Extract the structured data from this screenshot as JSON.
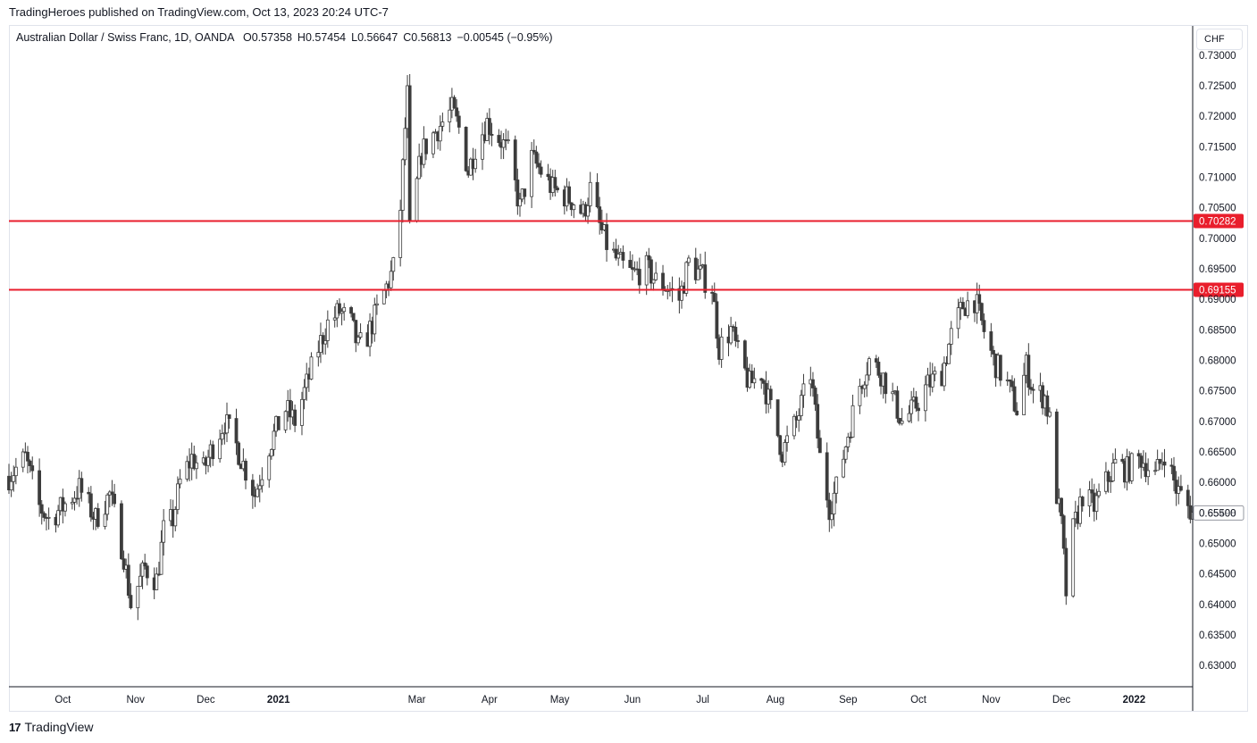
{
  "header": {
    "published": "TradingHeroes published on TradingView.com, Oct 13, 2023 20:24 UTC-7"
  },
  "legend": {
    "symbol": "Australian Dollar / Swiss Franc, 1D, OANDA",
    "open": "O0.57358",
    "high": "H0.57454",
    "low": "L0.56647",
    "close": "C0.56813",
    "change": "−0.00545 (−0.95%)"
  },
  "currency_button": "CHF",
  "footer": {
    "brand": "TradingView",
    "logo_glyph": "17"
  },
  "colors": {
    "candle": "#3c3c3c",
    "level_line": "#e91e2c",
    "axis_text": "#131722",
    "border": "#e0e3eb",
    "last_price_box": "#9598a1"
  },
  "chart_data": {
    "type": "candlestick",
    "title": "",
    "xlabel": "",
    "ylabel": "",
    "ylim": [
      0.6265,
      0.7348
    ],
    "y_ticks": [
      "0.73000",
      "0.72500",
      "0.72000",
      "0.71500",
      "0.71000",
      "0.70500",
      "0.70000",
      "0.69500",
      "0.69000",
      "0.68500",
      "0.68000",
      "0.67500",
      "0.67000",
      "0.66500",
      "0.66000",
      "0.65500",
      "0.65000",
      "0.64500",
      "0.64000",
      "0.63500",
      "0.63000"
    ],
    "x_ticks": [
      {
        "label": "Oct",
        "date": "2020-10-01",
        "bold": false
      },
      {
        "label": "Nov",
        "date": "2020-11-01",
        "bold": false
      },
      {
        "label": "Dec",
        "date": "2020-12-01",
        "bold": false
      },
      {
        "label": "2021",
        "date": "2021-01-01",
        "bold": true
      },
      {
        "label": "Mar",
        "date": "2021-03-01",
        "bold": false
      },
      {
        "label": "Apr",
        "date": "2021-04-01",
        "bold": false
      },
      {
        "label": "May",
        "date": "2021-05-01",
        "bold": false
      },
      {
        "label": "Jun",
        "date": "2021-06-01",
        "bold": false
      },
      {
        "label": "Jul",
        "date": "2021-07-01",
        "bold": false
      },
      {
        "label": "Aug",
        "date": "2021-08-01",
        "bold": false
      },
      {
        "label": "Sep",
        "date": "2021-09-01",
        "bold": false
      },
      {
        "label": "Oct",
        "date": "2021-10-01",
        "bold": false
      },
      {
        "label": "Nov",
        "date": "2021-11-01",
        "bold": false
      },
      {
        "label": "Dec",
        "date": "2021-12-01",
        "bold": false
      },
      {
        "label": "2022",
        "date": "2022-01-01",
        "bold": true
      }
    ],
    "x_range": [
      "2020-09-08",
      "2022-01-26"
    ],
    "levels": [
      {
        "value": 0.70282,
        "label": "0.70282"
      },
      {
        "value": 0.69155,
        "label": "0.69155"
      }
    ],
    "last_price": {
      "value": 0.65498,
      "label": "0.65498"
    },
    "close_path": [
      [
        "2020-09-08",
        0.661
      ],
      [
        "2020-09-15",
        0.664
      ],
      [
        "2020-09-21",
        0.656
      ],
      [
        "2020-09-25",
        0.654
      ],
      [
        "2020-10-01",
        0.656
      ],
      [
        "2020-10-08",
        0.659
      ],
      [
        "2020-10-15",
        0.654
      ],
      [
        "2020-10-21",
        0.658
      ],
      [
        "2020-10-27",
        0.648
      ],
      [
        "2020-10-30",
        0.64
      ],
      [
        "2020-11-05",
        0.646
      ],
      [
        "2020-11-10",
        0.644
      ],
      [
        "2020-11-13",
        0.652
      ],
      [
        "2020-11-17",
        0.654
      ],
      [
        "2020-11-20",
        0.66
      ],
      [
        "2020-11-25",
        0.664
      ],
      [
        "2020-11-30",
        0.662
      ],
      [
        "2020-12-04",
        0.666
      ],
      [
        "2020-12-09",
        0.67
      ],
      [
        "2020-12-14",
        0.666
      ],
      [
        "2020-12-18",
        0.662
      ],
      [
        "2020-12-22",
        0.658
      ],
      [
        "2020-12-28",
        0.666
      ],
      [
        "2021-01-04",
        0.672
      ],
      [
        "2021-01-08",
        0.67
      ],
      [
        "2021-01-13",
        0.676
      ],
      [
        "2021-01-18",
        0.682
      ],
      [
        "2021-01-22",
        0.686
      ],
      [
        "2021-01-27",
        0.688
      ],
      [
        "2021-02-01",
        0.686
      ],
      [
        "2021-02-04",
        0.682
      ],
      [
        "2021-02-08",
        0.684
      ],
      [
        "2021-02-12",
        0.688
      ],
      [
        "2021-02-16",
        0.692
      ],
      [
        "2021-02-19",
        0.695
      ],
      [
        "2021-02-22",
        0.705
      ],
      [
        "2021-02-24",
        0.718
      ],
      [
        "2021-02-25",
        0.725
      ],
      [
        "2021-02-26",
        0.701
      ],
      [
        "2021-03-03",
        0.714
      ],
      [
        "2021-03-08",
        0.717
      ],
      [
        "2021-03-12",
        0.719
      ],
      [
        "2021-03-16",
        0.721
      ],
      [
        "2021-03-19",
        0.718
      ],
      [
        "2021-03-23",
        0.711
      ],
      [
        "2021-03-26",
        0.715
      ],
      [
        "2021-03-31",
        0.719
      ],
      [
        "2021-04-06",
        0.716
      ],
      [
        "2021-04-09",
        0.714
      ],
      [
        "2021-04-14",
        0.705
      ],
      [
        "2021-04-19",
        0.713
      ],
      [
        "2021-04-23",
        0.711
      ],
      [
        "2021-04-28",
        0.708
      ],
      [
        "2021-05-03",
        0.707
      ],
      [
        "2021-05-07",
        0.706
      ],
      [
        "2021-05-11",
        0.704
      ],
      [
        "2021-05-14",
        0.708
      ],
      [
        "2021-05-18",
        0.702
      ],
      [
        "2021-05-21",
        0.699
      ],
      [
        "2021-05-26",
        0.696
      ],
      [
        "2021-06-01",
        0.694
      ],
      [
        "2021-06-07",
        0.695
      ],
      [
        "2021-06-11",
        0.693
      ],
      [
        "2021-06-16",
        0.692
      ],
      [
        "2021-06-21",
        0.69
      ],
      [
        "2021-06-25",
        0.696
      ],
      [
        "2021-06-30",
        0.694
      ],
      [
        "2021-07-05",
        0.692
      ],
      [
        "2021-07-08",
        0.682
      ],
      [
        "2021-07-13",
        0.685
      ],
      [
        "2021-07-16",
        0.681
      ],
      [
        "2021-07-21",
        0.676
      ],
      [
        "2021-07-26",
        0.678
      ],
      [
        "2021-07-30",
        0.672
      ],
      [
        "2021-08-04",
        0.665
      ],
      [
        "2021-08-10",
        0.67
      ],
      [
        "2021-08-16",
        0.678
      ],
      [
        "2021-08-20",
        0.664
      ],
      [
        "2021-08-24",
        0.656
      ],
      [
        "2021-08-27",
        0.659
      ],
      [
        "2021-09-01",
        0.668
      ],
      [
        "2021-09-06",
        0.676
      ],
      [
        "2021-09-10",
        0.68
      ],
      [
        "2021-09-15",
        0.678
      ],
      [
        "2021-09-20",
        0.674
      ],
      [
        "2021-09-24",
        0.67
      ],
      [
        "2021-09-29",
        0.672
      ],
      [
        "2021-10-05",
        0.676
      ],
      [
        "2021-10-11",
        0.678
      ],
      [
        "2021-10-15",
        0.684
      ],
      [
        "2021-10-20",
        0.689
      ],
      [
        "2021-10-25",
        0.69
      ],
      [
        "2021-10-28",
        0.686
      ],
      [
        "2021-11-02",
        0.68
      ],
      [
        "2021-11-08",
        0.676
      ],
      [
        "2021-11-12",
        0.672
      ],
      [
        "2021-11-16",
        0.679
      ],
      [
        "2021-11-19",
        0.675
      ],
      [
        "2021-11-24",
        0.674
      ],
      [
        "2021-11-26",
        0.67
      ],
      [
        "2021-11-29",
        0.658
      ],
      [
        "2021-12-01",
        0.653
      ],
      [
        "2021-12-03",
        0.642
      ],
      [
        "2021-12-06",
        0.652
      ],
      [
        "2021-12-10",
        0.658
      ],
      [
        "2021-12-15",
        0.656
      ],
      [
        "2021-12-20",
        0.66
      ],
      [
        "2021-12-24",
        0.663
      ],
      [
        "2021-12-29",
        0.662
      ],
      [
        "2022-01-04",
        0.664
      ],
      [
        "2022-01-10",
        0.661
      ],
      [
        "2022-01-14",
        0.665
      ],
      [
        "2022-01-19",
        0.659
      ],
      [
        "2022-01-24",
        0.656
      ],
      [
        "2022-01-26",
        0.655
      ]
    ],
    "session_extremes": {
      "high": 0.726,
      "low": 0.6375
    }
  }
}
